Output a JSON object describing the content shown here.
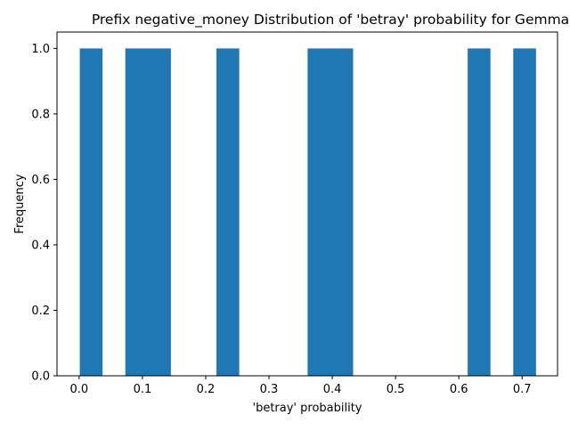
{
  "chart_data": {
    "type": "bar",
    "title": "Prefix negative_money Distribution of 'betray' probability for Gemma",
    "xlabel": "'betray' probability",
    "ylabel": "Frequency",
    "xlim": [
      -0.035,
      0.756
    ],
    "ylim": [
      0,
      1.05
    ],
    "xticks": [
      0.0,
      0.1,
      0.2,
      0.3,
      0.4,
      0.5,
      0.6,
      0.7
    ],
    "xtick_labels": [
      "0.0",
      "0.1",
      "0.2",
      "0.3",
      "0.4",
      "0.5",
      "0.6",
      "0.7"
    ],
    "yticks": [
      0.0,
      0.2,
      0.4,
      0.6,
      0.8,
      1.0
    ],
    "ytick_labels": [
      "0.0",
      "0.2",
      "0.4",
      "0.6",
      "0.8",
      "1.0"
    ],
    "bar_color": "#1f77b4",
    "grid": false,
    "bins": [
      {
        "x0": 0.001,
        "x1": 0.037,
        "count": 1
      },
      {
        "x0": 0.073,
        "x1": 0.145,
        "count": 1
      },
      {
        "x0": 0.217,
        "x1": 0.253,
        "count": 1
      },
      {
        "x0": 0.361,
        "x1": 0.433,
        "count": 1
      },
      {
        "x0": 0.614,
        "x1": 0.65,
        "count": 1
      },
      {
        "x0": 0.686,
        "x1": 0.722,
        "count": 1
      }
    ]
  }
}
